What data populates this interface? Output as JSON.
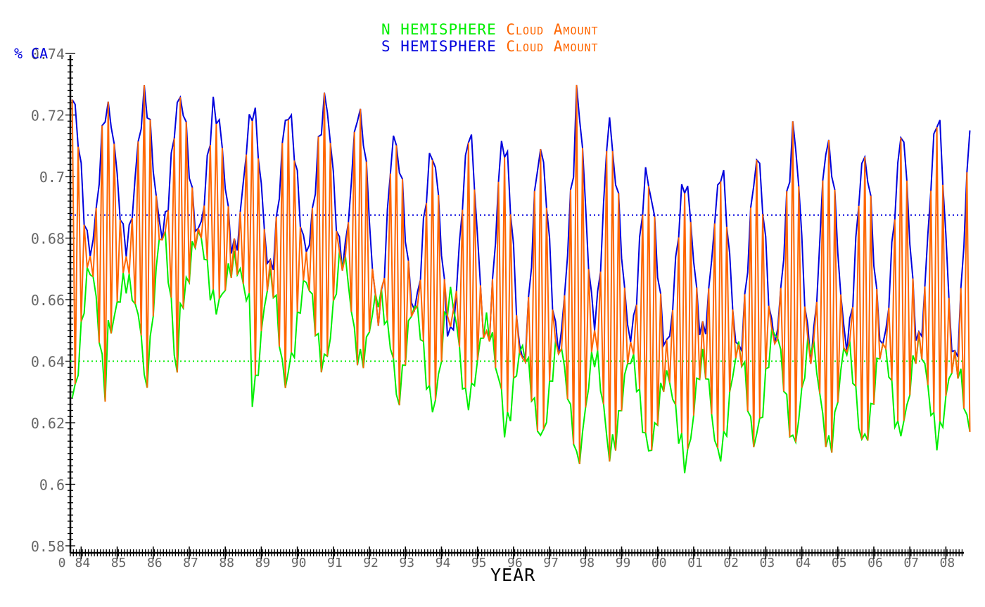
{
  "chart_data": {
    "type": "line",
    "title_lines": [
      {
        "hemisphere": "N HEMISPHERE",
        "quantity": "Cloud Amount",
        "hemisphere_color": "#00ee00",
        "quantity_color": "#ff6600"
      },
      {
        "hemisphere": "S HEMISPHERE",
        "quantity": "Cloud Amount",
        "hemisphere_color": "#0000dd",
        "quantity_color": "#ff6600"
      }
    ],
    "xlabel": "YEAR",
    "ylabel": "% CA",
    "ylim": [
      0.58,
      0.74
    ],
    "xlim": [
      1983.7,
      2008.5
    ],
    "y_tick_labels": [
      "0.58",
      "0.6",
      "0.62",
      "0.64",
      "0.66",
      "0.68",
      "0.7",
      "0.72",
      "0.74"
    ],
    "x_origin_label": "0",
    "x_tick_labels": [
      "84",
      "85",
      "86",
      "87",
      "88",
      "89",
      "90",
      "91",
      "92",
      "93",
      "94",
      "95",
      "96",
      "97",
      "98",
      "99",
      "00",
      "01",
      "02",
      "03",
      "04",
      "05",
      "06",
      "07",
      "08"
    ],
    "grid": false,
    "colors": {
      "north": "#00ee00",
      "south": "#0000dd",
      "global": "#ff6600"
    },
    "series": [
      {
        "key": "south_max_envelope",
        "color": "#0000dd",
        "yearly_peak": [
          0.725,
          0.721,
          0.726,
          0.725,
          0.72,
          0.722,
          0.72,
          0.725,
          0.718,
          0.708,
          0.707,
          0.715,
          0.709,
          0.708,
          0.726,
          0.705,
          0.697,
          0.698,
          0.702,
          0.706,
          0.715,
          0.708,
          0.705,
          0.715,
          0.72
        ],
        "yearly_trough": [
          0.676,
          0.678,
          0.682,
          0.682,
          0.676,
          0.67,
          0.676,
          0.673,
          0.655,
          0.657,
          0.648,
          0.646,
          0.64,
          0.645,
          0.654,
          0.648,
          0.645,
          0.649,
          0.643,
          0.647,
          0.643,
          0.646,
          0.645,
          0.646,
          0.64
        ]
      },
      {
        "key": "north_min_envelope",
        "color": "#00ee00",
        "yearly_peak": [
          0.67,
          0.666,
          0.682,
          0.681,
          0.672,
          0.667,
          0.666,
          0.674,
          0.661,
          0.658,
          0.661,
          0.652,
          0.644,
          0.645,
          0.642,
          0.641,
          0.635,
          0.64,
          0.644,
          0.65,
          0.646,
          0.645,
          0.645,
          0.645,
          0.64
        ],
        "yearly_trough": [
          0.628,
          0.65,
          0.632,
          0.658,
          0.658,
          0.629,
          0.638,
          0.64,
          0.64,
          0.627,
          0.625,
          0.628,
          0.618,
          0.615,
          0.607,
          0.613,
          0.611,
          0.607,
          0.611,
          0.617,
          0.613,
          0.612,
          0.615,
          0.618,
          0.615
        ]
      }
    ],
    "reference_lines": [
      {
        "label_hidden": true,
        "y": 0.6875,
        "color": "#0000dd",
        "style": "dotted"
      },
      {
        "label_hidden": true,
        "y": 0.64,
        "color": "#00ee00",
        "style": "dotted"
      }
    ]
  }
}
